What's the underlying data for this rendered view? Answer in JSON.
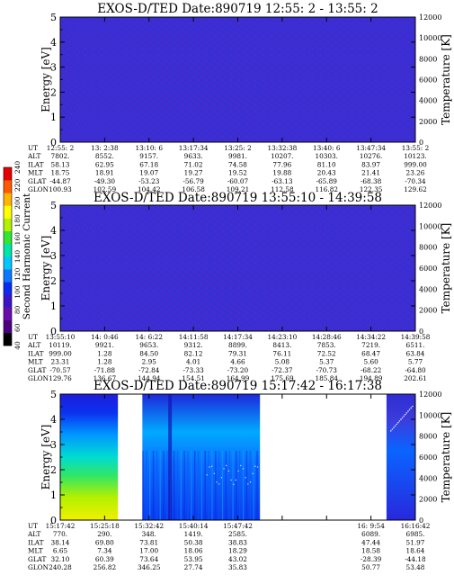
{
  "chart_data": [
    {
      "type": "heatmap",
      "title": "EXOS-D/TED   Date:890719   12:55: 2 - 13:55: 2",
      "ylabel": "Energy [eV]",
      "y2label": "Temperature [K]",
      "ylim": [
        0,
        5
      ],
      "y2lim": [
        0,
        12000
      ],
      "yticks": [
        "0",
        "1",
        "2",
        "3",
        "4",
        "5"
      ],
      "y2ticks": [
        "0",
        "2000",
        "4000",
        "6000",
        "8000",
        "10000",
        "12000"
      ],
      "data_fill": "uniform low intensity (blue) across all times and energies",
      "data_columns": [
        {
          "from_tick": 0,
          "to_tick": 8
        }
      ],
      "table": {
        "row_labels": [
          "UT",
          "ALT",
          "ILAT",
          "MLT",
          "GLAT",
          "GLON"
        ],
        "columns": [
          [
            "12:55: 2",
            "7802.",
            "58.13",
            "18.75",
            "-44.87",
            "100.93"
          ],
          [
            "13: 2:38",
            "8552.",
            "62.95",
            "18.91",
            "-49.30",
            "102.59"
          ],
          [
            "13:10: 6",
            "9157.",
            "67.18",
            "19.07",
            "-53.23",
            "104.42"
          ],
          [
            "13:17:34",
            "9633.",
            "71.02",
            "19.27",
            "-56.79",
            "106.58"
          ],
          [
            "13:25: 2",
            "9981.",
            "74.58",
            "19.52",
            "-60.07",
            "109.21"
          ],
          [
            "13:32:38",
            "10207.",
            "77.96",
            "19.88",
            "-63.13",
            "112.58"
          ],
          [
            "13:40: 6",
            "10303.",
            "81.10",
            "20.43",
            "-65.89",
            "116.82"
          ],
          [
            "13:47:34",
            "10276.",
            "83.97",
            "21.41",
            "-68.38",
            "122.35"
          ],
          [
            "13:55: 2",
            "10123.",
            "999.00",
            "23.26",
            "-70.34",
            "129.62"
          ]
        ]
      }
    },
    {
      "type": "heatmap",
      "title": "EXOS-D/TED   Date:890719   13:55:10 - 14:39:58",
      "ylabel": "Energy [eV]",
      "y2label": "Temperature [K]",
      "ylim": [
        0,
        5
      ],
      "y2lim": [
        0,
        12000
      ],
      "yticks": [
        "0",
        "1",
        "2",
        "3",
        "4",
        "5"
      ],
      "y2ticks": [
        "0",
        "2000",
        "4000",
        "6000",
        "8000",
        "10000",
        "12000"
      ],
      "data_fill": "uniform low intensity (blue) across all times and energies",
      "data_columns": [
        {
          "from_tick": 0,
          "to_tick": 8
        }
      ],
      "table": {
        "row_labels": [
          "UT",
          "ALT",
          "ILAT",
          "MLT",
          "GLAT",
          "GLON"
        ],
        "columns": [
          [
            "13:55:10",
            "10119.",
            "999.00",
            "23.31",
            "-70.57",
            "129.76"
          ],
          [
            "14: 0:46",
            "9921.",
            "1.28",
            "1.28",
            "-71.88",
            "136.67"
          ],
          [
            "14: 6:22",
            "9653.",
            "84.50",
            "2.95",
            "-72.84",
            "144.94"
          ],
          [
            "14:11:58",
            "9312.",
            "82.12",
            "4.01",
            "-73.33",
            "154.51"
          ],
          [
            "14:17:34",
            "8899.",
            "79.31",
            "4.66",
            "-73.20",
            "164.99"
          ],
          [
            "14:23:10",
            "8413.",
            "76.11",
            "5.08",
            "-72.37",
            "175.69"
          ],
          [
            "14:28:46",
            "7853.",
            "72.52",
            "5.37",
            "-70.73",
            "185.84"
          ],
          [
            "14:34:22",
            "7219.",
            "68.47",
            "5.60",
            "-68.22",
            "194.89"
          ],
          [
            "14:39:58",
            "6511.",
            "63.84",
            "5.77",
            "-64.80",
            "202.61"
          ]
        ]
      }
    },
    {
      "type": "heatmap",
      "title": "EXOS-D/TED   Date:890719   15:17:42 - 16:17:38",
      "ylabel": "Energy [eV]",
      "y2label": "Temperature [K]",
      "ylim": [
        0,
        5
      ],
      "y2lim": [
        0,
        12000
      ],
      "yticks": [
        "0",
        "1",
        "2",
        "3",
        "4",
        "5"
      ],
      "y2ticks": [
        "0",
        "2000",
        "4000",
        "6000",
        "8000",
        "10000",
        "12000"
      ],
      "data_fill": "high intensity at low energies early, decreasing with time; data gaps present",
      "data_columns": [
        {
          "from_tick": 0,
          "to_tick": 1.3
        },
        {
          "from_tick": 1.85,
          "to_tick": 4.5
        },
        {
          "from_tick": 7.35,
          "to_tick": 8
        }
      ],
      "table": {
        "row_labels": [
          "UT",
          "ALT",
          "ILAT",
          "MLT",
          "GLAT",
          "GLON"
        ],
        "columns": [
          [
            "15:17:42",
            "770.",
            "38.14",
            "6.65",
            "32.10",
            "240.28"
          ],
          [
            "15:25:18",
            "290.",
            "69.80",
            "7.34",
            "60.39",
            "256.82"
          ],
          [
            "15:32:42",
            "348.",
            "73.81",
            "17.00",
            "73.64",
            "346.25"
          ],
          [
            "15:40:14",
            "1419.",
            "50.38",
            "18.06",
            "53.95",
            "27.74"
          ],
          [
            "15:47:42",
            "2585.",
            "38.83",
            "18.29",
            "43.02",
            "35.83"
          ],
          null,
          null,
          [
            "16: 9:54",
            "6089.",
            "47.44",
            "18.58",
            "-28.39",
            "50.77"
          ],
          [
            "16:16:42",
            "6985.",
            "51.97",
            "18.64",
            "-44.18",
            "53.48"
          ]
        ]
      }
    }
  ],
  "colorbar": {
    "label": "Second Harmonic Current",
    "tick_labels": [
      "40",
      "60",
      "80",
      "100",
      "120",
      "140",
      "160",
      "180",
      "200",
      "220",
      "240"
    ],
    "colors": [
      "#000000",
      "#4b0082",
      "#6a0dad",
      "#3c14c8",
      "#0a2cf0",
      "#0a78ff",
      "#00c8ff",
      "#00e6aa",
      "#32e632",
      "#b4f000",
      "#ffff00",
      "#ffb400",
      "#ff5a00",
      "#e60000"
    ]
  }
}
